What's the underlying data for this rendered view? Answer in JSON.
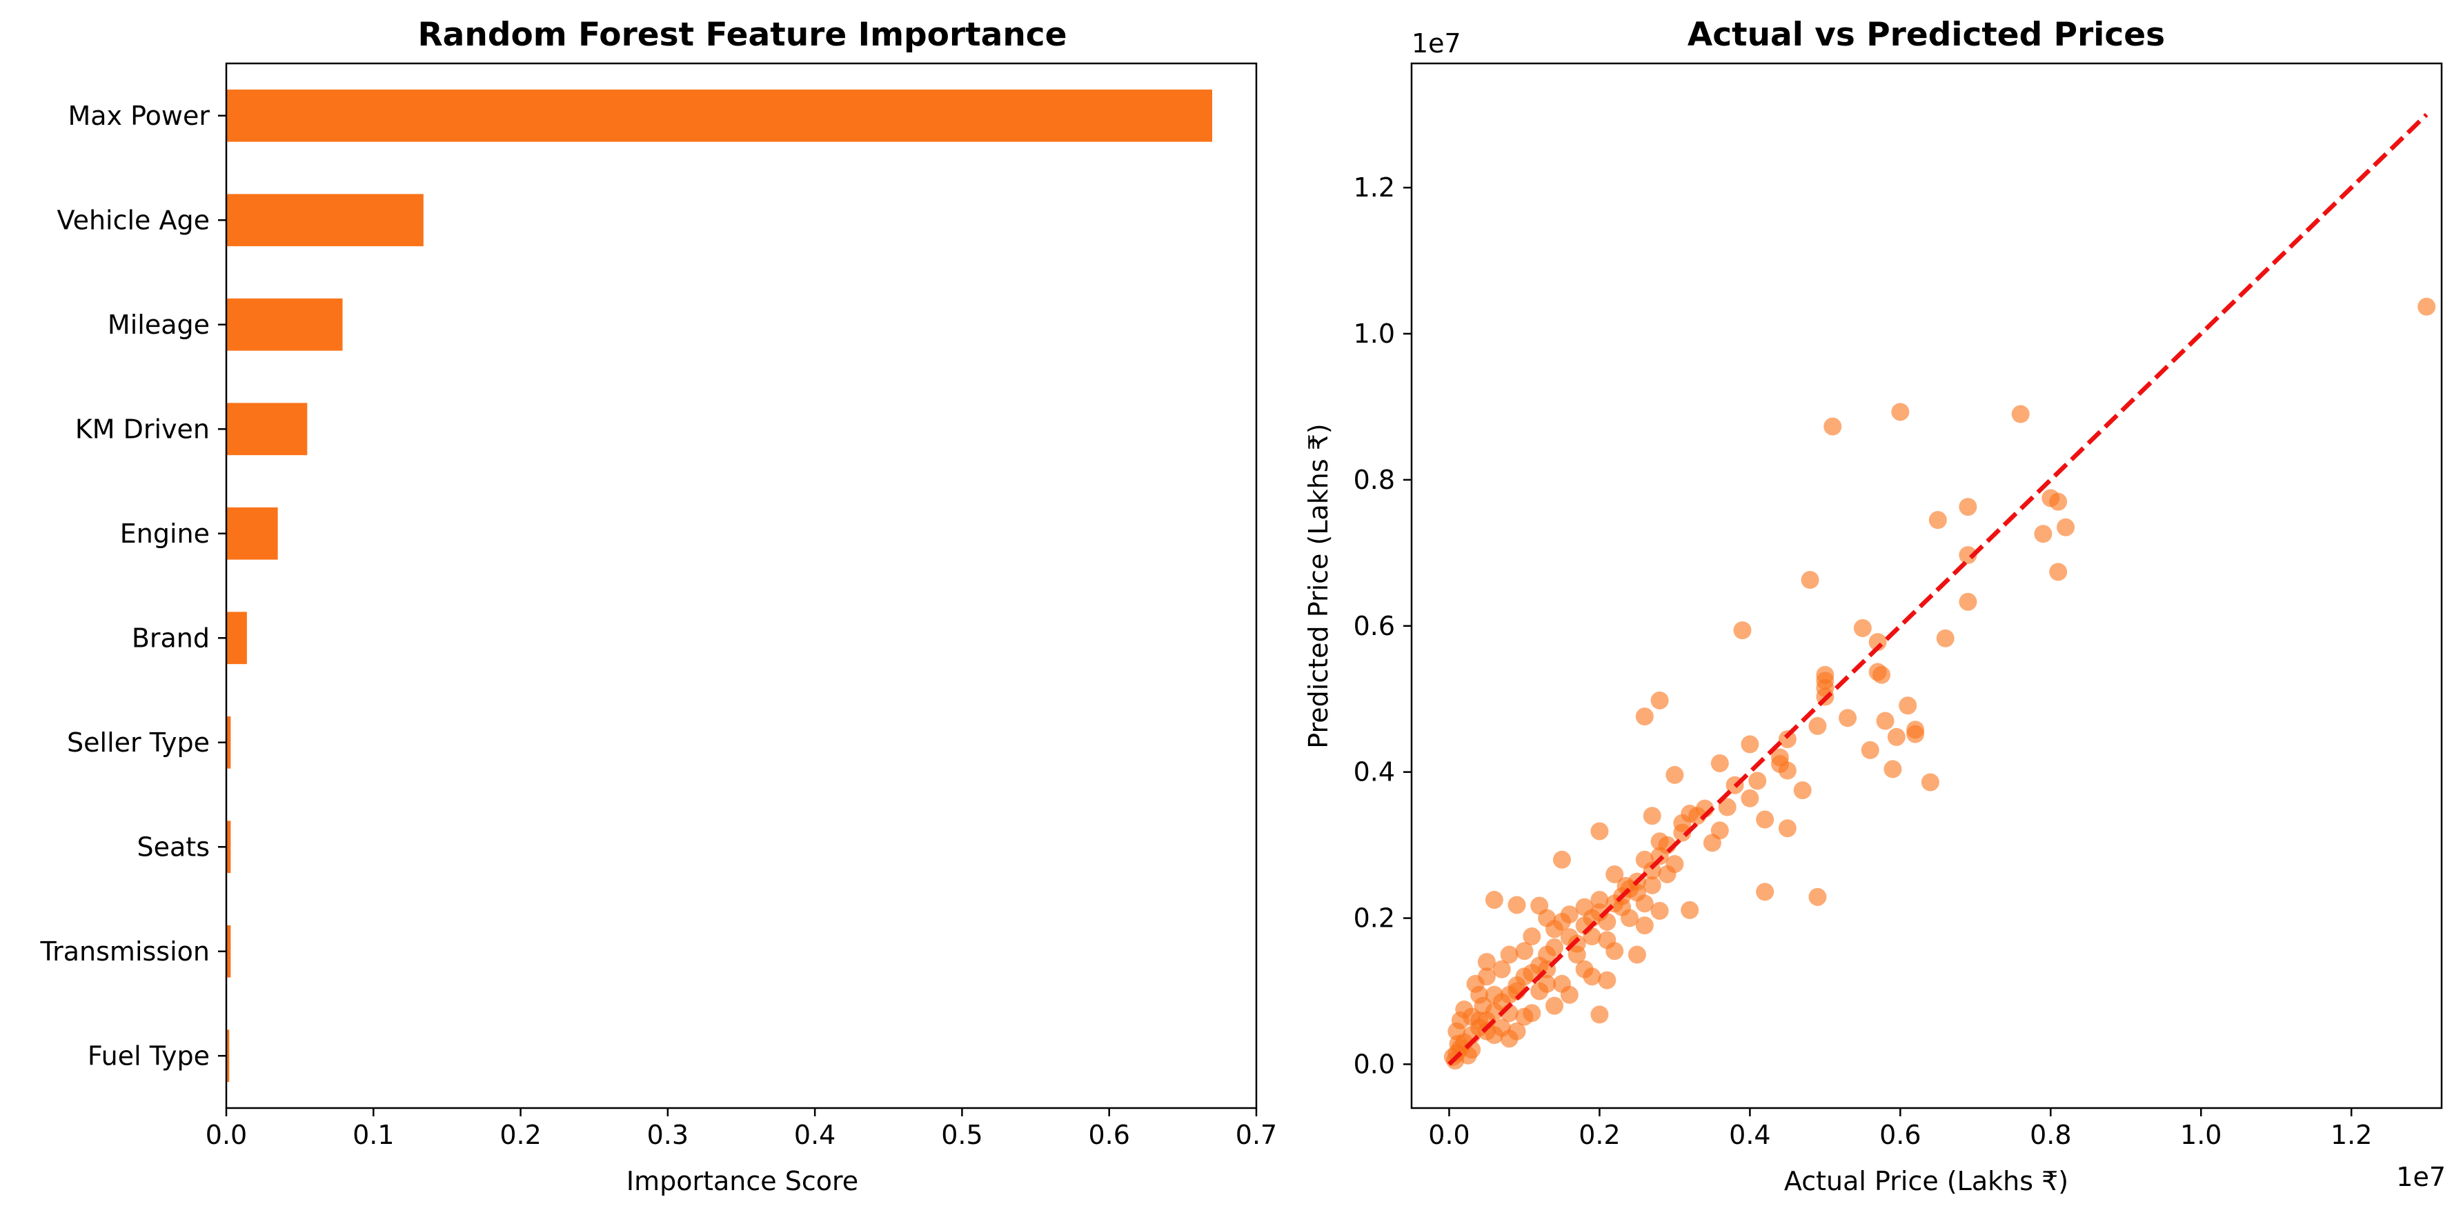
{
  "chart_data": [
    {
      "type": "bar",
      "orientation": "horizontal",
      "title": "Random Forest Feature Importance",
      "xlabel": "Importance Score",
      "ylabel": "",
      "xlim": [
        0,
        0.7
      ],
      "xticks": [
        "0.0",
        "0.1",
        "0.2",
        "0.3",
        "0.4",
        "0.5",
        "0.6",
        "0.7"
      ],
      "grid": false,
      "color": "#fa7319",
      "categories": [
        "Max Power",
        "Vehicle Age",
        "Mileage",
        "KM Driven",
        "Engine",
        "Brand",
        "Seller Type",
        "Seats",
        "Transmission",
        "Fuel Type"
      ],
      "values": [
        0.67,
        0.134,
        0.079,
        0.055,
        0.035,
        0.014,
        0.003,
        0.003,
        0.003,
        0.002
      ]
    },
    {
      "type": "scatter",
      "title": "Actual vs Predicted Prices",
      "xlabel": "Actual Price (Lakhs ₹)",
      "ylabel": "Predicted Price (Lakhs ₹)",
      "x_offset_label": "1e7",
      "y_offset_label": "1e7",
      "xlim": [
        -0.05,
        1.32
      ],
      "ylim": [
        -0.06,
        1.37
      ],
      "xticks": [
        "0.0",
        "0.2",
        "0.4",
        "0.6",
        "0.8",
        "1.0",
        "1.2"
      ],
      "yticks": [
        "0.0",
        "0.2",
        "0.4",
        "0.6",
        "0.8",
        "1.0",
        "1.2"
      ],
      "grid": false,
      "point_color": "#fa7319",
      "point_alpha": 0.6,
      "reference_line": {
        "style": "dashed",
        "color": "#ee1111",
        "from": [
          0.0,
          0.0
        ],
        "to": [
          1.3,
          1.3
        ]
      },
      "points": [
        [
          1.3,
          1.037
        ],
        [
          0.51,
          0.873
        ],
        [
          0.6,
          0.893
        ],
        [
          0.76,
          0.89
        ],
        [
          0.8,
          0.775
        ],
        [
          0.81,
          0.77
        ],
        [
          0.82,
          0.735
        ],
        [
          0.79,
          0.726
        ],
        [
          0.81,
          0.674
        ],
        [
          0.65,
          0.745
        ],
        [
          0.69,
          0.763
        ],
        [
          0.69,
          0.697
        ],
        [
          0.69,
          0.633
        ],
        [
          0.66,
          0.583
        ],
        [
          0.48,
          0.663
        ],
        [
          0.39,
          0.594
        ],
        [
          0.55,
          0.597
        ],
        [
          0.57,
          0.578
        ],
        [
          0.57,
          0.537
        ],
        [
          0.575,
          0.533
        ],
        [
          0.5,
          0.533
        ],
        [
          0.5,
          0.525
        ],
        [
          0.5,
          0.515
        ],
        [
          0.5,
          0.503
        ],
        [
          0.61,
          0.491
        ],
        [
          0.595,
          0.448
        ],
        [
          0.62,
          0.458
        ],
        [
          0.62,
          0.452
        ],
        [
          0.56,
          0.43
        ],
        [
          0.59,
          0.404
        ],
        [
          0.64,
          0.386
        ],
        [
          0.58,
          0.47
        ],
        [
          0.53,
          0.474
        ],
        [
          0.49,
          0.463
        ],
        [
          0.47,
          0.375
        ],
        [
          0.45,
          0.323
        ],
        [
          0.42,
          0.236
        ],
        [
          0.49,
          0.229
        ],
        [
          0.28,
          0.498
        ],
        [
          0.26,
          0.476
        ],
        [
          0.36,
          0.412
        ],
        [
          0.4,
          0.438
        ],
        [
          0.41,
          0.388
        ],
        [
          0.45,
          0.445
        ],
        [
          0.44,
          0.42
        ],
        [
          0.44,
          0.411
        ],
        [
          0.45,
          0.402
        ],
        [
          0.38,
          0.382
        ],
        [
          0.4,
          0.364
        ],
        [
          0.42,
          0.335
        ],
        [
          0.37,
          0.352
        ],
        [
          0.36,
          0.32
        ],
        [
          0.35,
          0.303
        ],
        [
          0.32,
          0.343
        ],
        [
          0.3,
          0.396
        ],
        [
          0.31,
          0.317
        ],
        [
          0.32,
          0.211
        ],
        [
          0.27,
          0.34
        ],
        [
          0.28,
          0.305
        ],
        [
          0.2,
          0.319
        ],
        [
          0.15,
          0.28
        ],
        [
          0.25,
          0.25
        ],
        [
          0.29,
          0.26
        ],
        [
          0.3,
          0.274
        ],
        [
          0.28,
          0.21
        ],
        [
          0.26,
          0.19
        ],
        [
          0.235,
          0.244
        ],
        [
          0.22,
          0.22
        ],
        [
          0.2,
          0.208
        ],
        [
          0.18,
          0.19
        ],
        [
          0.16,
          0.174
        ],
        [
          0.14,
          0.16
        ],
        [
          0.13,
          0.15
        ],
        [
          0.12,
          0.135
        ],
        [
          0.1,
          0.12
        ],
        [
          0.09,
          0.108
        ],
        [
          0.08,
          0.095
        ],
        [
          0.07,
          0.085
        ],
        [
          0.06,
          0.072
        ],
        [
          0.05,
          0.06
        ],
        [
          0.04,
          0.05
        ],
        [
          0.03,
          0.04
        ],
        [
          0.02,
          0.03
        ],
        [
          0.015,
          0.022
        ],
        [
          0.01,
          0.015
        ],
        [
          0.005,
          0.01
        ],
        [
          0.008,
          0.005
        ],
        [
          0.02,
          0.075
        ],
        [
          0.05,
          0.12
        ],
        [
          0.06,
          0.04
        ],
        [
          0.03,
          0.02
        ],
        [
          0.012,
          0.028
        ],
        [
          0.04,
          0.095
        ],
        [
          0.025,
          0.012
        ],
        [
          0.15,
          0.11
        ],
        [
          0.18,
          0.13
        ],
        [
          0.21,
          0.17
        ],
        [
          0.24,
          0.2
        ],
        [
          0.17,
          0.15
        ],
        [
          0.19,
          0.175
        ],
        [
          0.23,
          0.23
        ],
        [
          0.26,
          0.28
        ],
        [
          0.22,
          0.26
        ],
        [
          0.24,
          0.24
        ],
        [
          0.27,
          0.265
        ],
        [
          0.29,
          0.3
        ],
        [
          0.31,
          0.33
        ],
        [
          0.34,
          0.35
        ],
        [
          0.22,
          0.155
        ],
        [
          0.25,
          0.15
        ],
        [
          0.19,
          0.12
        ],
        [
          0.2,
          0.068
        ],
        [
          0.21,
          0.115
        ],
        [
          0.14,
          0.08
        ],
        [
          0.16,
          0.095
        ],
        [
          0.11,
          0.07
        ],
        [
          0.09,
          0.045
        ],
        [
          0.1,
          0.065
        ],
        [
          0.07,
          0.05
        ],
        [
          0.08,
          0.035
        ],
        [
          0.12,
          0.1
        ],
        [
          0.13,
          0.11
        ],
        [
          0.06,
          0.225
        ],
        [
          0.09,
          0.218
        ],
        [
          0.12,
          0.217
        ],
        [
          0.13,
          0.2
        ],
        [
          0.11,
          0.175
        ],
        [
          0.08,
          0.15
        ],
        [
          0.1,
          0.155
        ],
        [
          0.05,
          0.14
        ],
        [
          0.07,
          0.13
        ],
        [
          0.035,
          0.11
        ],
        [
          0.045,
          0.08
        ],
        [
          0.015,
          0.06
        ],
        [
          0.01,
          0.045
        ],
        [
          0.03,
          0.065
        ],
        [
          0.14,
          0.185
        ],
        [
          0.16,
          0.205
        ],
        [
          0.18,
          0.215
        ],
        [
          0.2,
          0.225
        ],
        [
          0.15,
          0.195
        ],
        [
          0.17,
          0.165
        ],
        [
          0.19,
          0.2
        ],
        [
          0.11,
          0.125
        ],
        [
          0.09,
          0.1
        ],
        [
          0.13,
          0.13
        ],
        [
          0.08,
          0.07
        ],
        [
          0.06,
          0.095
        ],
        [
          0.04,
          0.06
        ],
        [
          0.05,
          0.045
        ],
        [
          0.21,
          0.195
        ],
        [
          0.23,
          0.215
        ],
        [
          0.25,
          0.235
        ],
        [
          0.27,
          0.245
        ],
        [
          0.26,
          0.22
        ],
        [
          0.28,
          0.285
        ],
        [
          0.33,
          0.34
        ]
      ]
    }
  ]
}
